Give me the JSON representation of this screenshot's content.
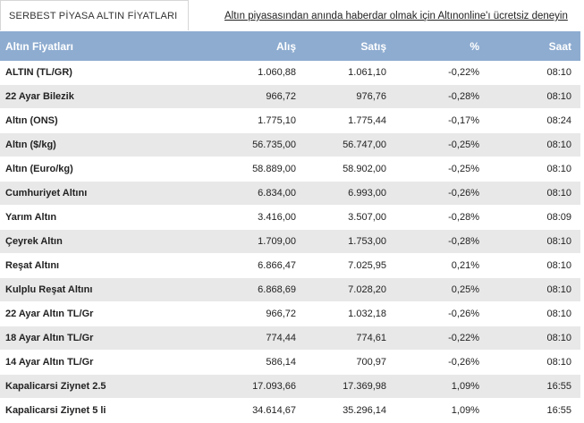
{
  "tab_title": "SERBEST PİYASA ALTIN FİYATLARI",
  "promo_link": "Altın piyasasından anında haberdar olmak için Altınonline'ı ücretsiz deneyin",
  "table": {
    "headers": [
      "Altın Fiyatları",
      "Alış",
      "Satış",
      "%",
      "Saat"
    ],
    "rows": [
      [
        "ALTIN (TL/GR)",
        "1.060,88",
        "1.061,10",
        "-0,22%",
        "08:10"
      ],
      [
        "22 Ayar Bilezik",
        "966,72",
        "976,76",
        "-0,28%",
        "08:10"
      ],
      [
        "Altın (ONS)",
        "1.775,10",
        "1.775,44",
        "-0,17%",
        "08:24"
      ],
      [
        "Altın ($/kg)",
        "56.735,00",
        "56.747,00",
        "-0,25%",
        "08:10"
      ],
      [
        "Altın (Euro/kg)",
        "58.889,00",
        "58.902,00",
        "-0,25%",
        "08:10"
      ],
      [
        "Cumhuriyet Altını",
        "6.834,00",
        "6.993,00",
        "-0,26%",
        "08:10"
      ],
      [
        "Yarım Altın",
        "3.416,00",
        "3.507,00",
        "-0,28%",
        "08:09"
      ],
      [
        "Çeyrek Altın",
        "1.709,00",
        "1.753,00",
        "-0,28%",
        "08:10"
      ],
      [
        "Reşat Altını",
        "6.866,47",
        "7.025,95",
        "0,21%",
        "08:10"
      ],
      [
        "Kulplu Reşat Altını",
        "6.868,69",
        "7.028,20",
        "0,25%",
        "08:10"
      ],
      [
        "22 Ayar Altın TL/Gr",
        "966,72",
        "1.032,18",
        "-0,26%",
        "08:10"
      ],
      [
        "18 Ayar Altın TL/Gr",
        "774,44",
        "774,61",
        "-0,22%",
        "08:10"
      ],
      [
        "14 Ayar Altın TL/Gr",
        "586,14",
        "700,97",
        "-0,26%",
        "08:10"
      ],
      [
        "Kapalicarsi Ziynet 2.5",
        "17.093,66",
        "17.369,98",
        "1,09%",
        "16:55"
      ],
      [
        "Kapalicarsi Ziynet 5 li",
        "34.614,67",
        "35.296,14",
        "1,09%",
        "16:55"
      ]
    ]
  }
}
